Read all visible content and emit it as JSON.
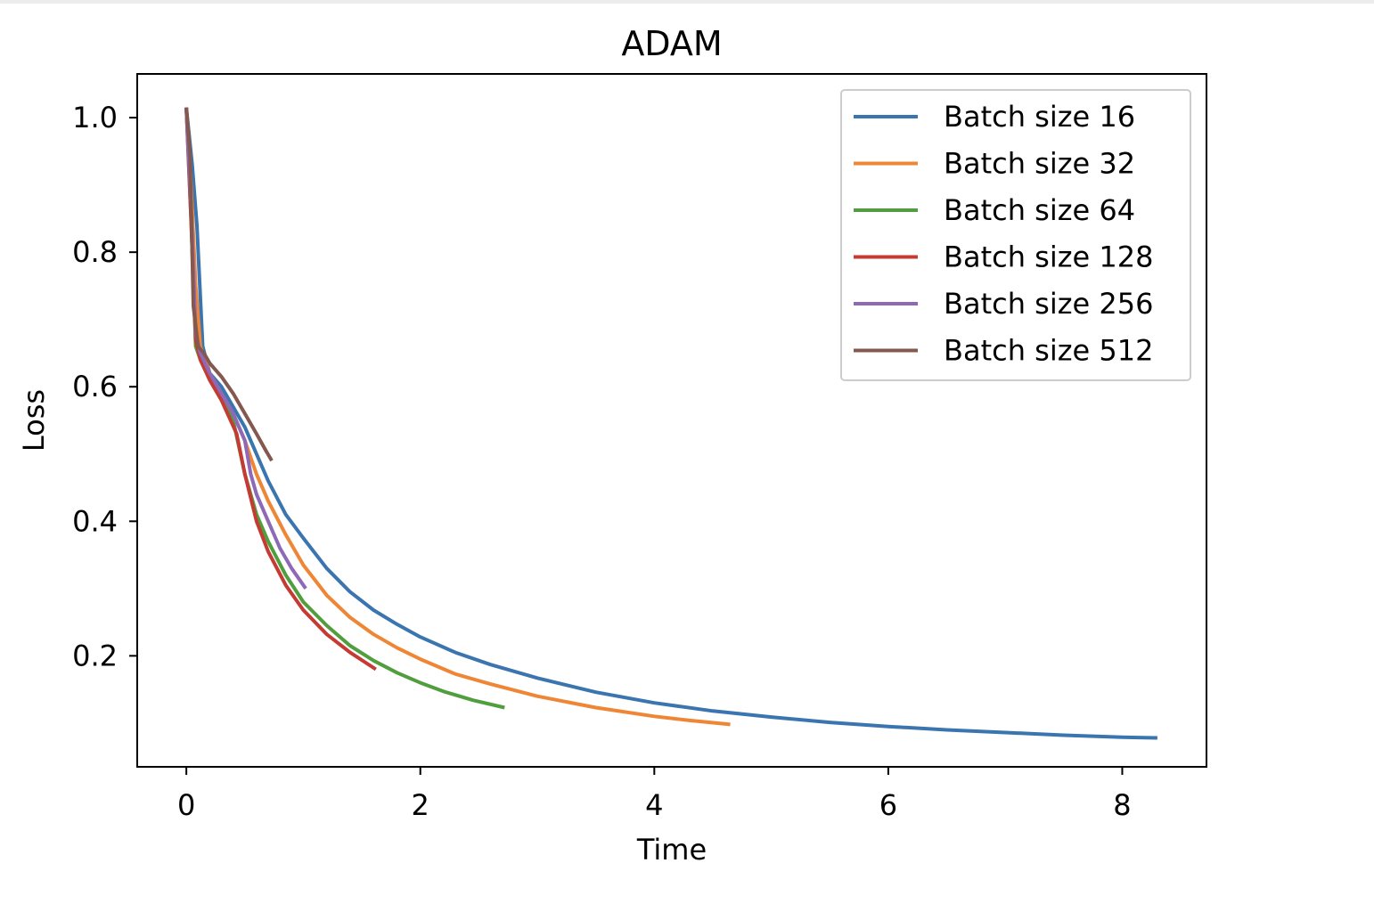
{
  "chart_data": {
    "type": "line",
    "title": "ADAM",
    "xlabel": "Time",
    "ylabel": "Loss",
    "xlim": [
      -0.42,
      8.72
    ],
    "ylim": [
      0.035,
      1.065
    ],
    "xticks": [
      0,
      2,
      4,
      6,
      8
    ],
    "xtick_labels": [
      "0",
      "2",
      "4",
      "6",
      "8"
    ],
    "yticks": [
      0.2,
      0.4,
      0.6,
      0.8,
      1.0
    ],
    "ytick_labels": [
      "0.2",
      "0.4",
      "0.6",
      "0.8",
      "1.0"
    ],
    "grid": false,
    "legend_position": "top-right",
    "series": [
      {
        "name": "Batch size 16",
        "color": "#3b75af",
        "x": [
          0,
          0.05,
          0.09,
          0.14,
          0.2,
          0.3,
          0.4,
          0.5,
          0.6,
          0.7,
          0.85,
          1.0,
          1.2,
          1.4,
          1.6,
          1.8,
          2.0,
          2.3,
          2.6,
          3.0,
          3.5,
          4.0,
          4.5,
          5.0,
          5.5,
          6.0,
          6.5,
          7.0,
          7.5,
          8.0,
          8.3
        ],
        "y": [
          1.015,
          0.93,
          0.84,
          0.66,
          0.62,
          0.6,
          0.57,
          0.54,
          0.5,
          0.46,
          0.41,
          0.375,
          0.33,
          0.295,
          0.268,
          0.247,
          0.228,
          0.205,
          0.187,
          0.167,
          0.146,
          0.13,
          0.118,
          0.109,
          0.101,
          0.095,
          0.09,
          0.086,
          0.082,
          0.079,
          0.078
        ]
      },
      {
        "name": "Batch size 32",
        "color": "#ef8636",
        "x": [
          0,
          0.04,
          0.08,
          0.12,
          0.2,
          0.3,
          0.4,
          0.5,
          0.6,
          0.7,
          0.85,
          1.0,
          1.2,
          1.4,
          1.6,
          1.8,
          2.0,
          2.3,
          2.6,
          3.0,
          3.5,
          4.0,
          4.3,
          4.65
        ],
        "y": [
          1.015,
          0.9,
          0.75,
          0.66,
          0.62,
          0.59,
          0.56,
          0.52,
          0.47,
          0.43,
          0.38,
          0.335,
          0.29,
          0.257,
          0.232,
          0.212,
          0.195,
          0.173,
          0.158,
          0.14,
          0.123,
          0.11,
          0.104,
          0.098
        ]
      },
      {
        "name": "Batch size 64",
        "color": "#519e3e",
        "x": [
          0,
          0.04,
          0.08,
          0.12,
          0.2,
          0.3,
          0.4,
          0.5,
          0.6,
          0.7,
          0.85,
          1.0,
          1.2,
          1.4,
          1.6,
          1.8,
          2.0,
          2.2,
          2.45,
          2.72
        ],
        "y": [
          1.015,
          0.85,
          0.66,
          0.64,
          0.61,
          0.58,
          0.55,
          0.47,
          0.41,
          0.37,
          0.32,
          0.28,
          0.245,
          0.215,
          0.193,
          0.175,
          0.16,
          0.147,
          0.134,
          0.123
        ]
      },
      {
        "name": "Batch size 128",
        "color": "#c53a32",
        "x": [
          0,
          0.04,
          0.08,
          0.12,
          0.2,
          0.3,
          0.43,
          0.5,
          0.6,
          0.7,
          0.85,
          1.0,
          1.2,
          1.4,
          1.62
        ],
        "y": [
          1.015,
          0.85,
          0.67,
          0.64,
          0.61,
          0.58,
          0.53,
          0.47,
          0.4,
          0.355,
          0.305,
          0.268,
          0.232,
          0.205,
          0.18
        ]
      },
      {
        "name": "Batch size 256",
        "color": "#8d69b8",
        "x": [
          0,
          0.04,
          0.08,
          0.12,
          0.2,
          0.3,
          0.4,
          0.5,
          0.55,
          0.6,
          0.7,
          0.8,
          0.9,
          1.02
        ],
        "y": [
          1.015,
          0.87,
          0.68,
          0.65,
          0.62,
          0.59,
          0.56,
          0.52,
          0.47,
          0.44,
          0.4,
          0.36,
          0.33,
          0.3
        ]
      },
      {
        "name": "Batch size 512",
        "color": "#84584e",
        "x": [
          0,
          0.03,
          0.06,
          0.1,
          0.15,
          0.2,
          0.3,
          0.4,
          0.5,
          0.6,
          0.68,
          0.73
        ],
        "y": [
          1.015,
          0.95,
          0.72,
          0.66,
          0.65,
          0.635,
          0.615,
          0.59,
          0.56,
          0.53,
          0.505,
          0.49
        ]
      }
    ]
  }
}
